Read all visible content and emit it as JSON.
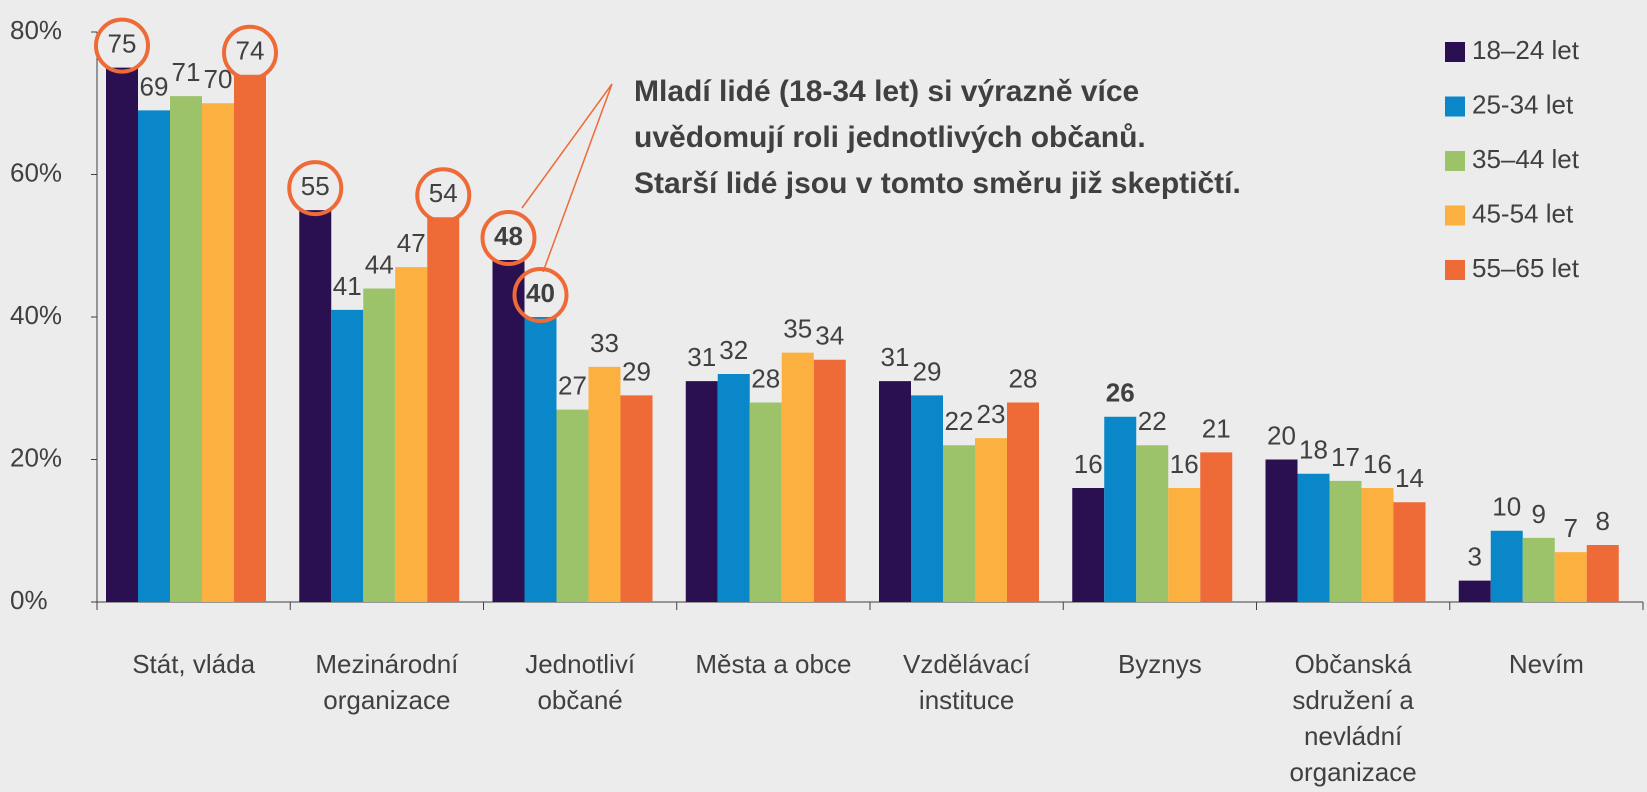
{
  "chart_data": {
    "type": "bar",
    "annotation": [
      "Mladí lidé (18-34 let) si výrazně více",
      "uvědomují roli jednotlivých občanů.",
      "Starší lidé jsou v tomto směru již skeptičtí."
    ],
    "categories": [
      "Stát, vláda",
      "Mezinárodní organizace",
      "Jednotliví občané",
      "Města a obce",
      "Vzdělávací instituce",
      "Byznys",
      "Občanská sdružení a nevládní organizace",
      "Nevím"
    ],
    "series": [
      {
        "name": "18–24 let",
        "color": "#2a1050",
        "values": [
          75,
          55,
          48,
          31,
          31,
          16,
          20,
          3
        ]
      },
      {
        "name": "25-34 let",
        "color": "#0a87c8",
        "values": [
          69,
          41,
          40,
          32,
          29,
          26,
          18,
          10
        ]
      },
      {
        "name": "35–44 let",
        "color": "#9dc36a",
        "values": [
          71,
          44,
          27,
          28,
          22,
          22,
          17,
          9
        ]
      },
      {
        "name": "45-54 let",
        "color": "#fbb040",
        "values": [
          70,
          47,
          33,
          35,
          23,
          16,
          16,
          7
        ]
      },
      {
        "name": "55–65 let",
        "color": "#ee6a36",
        "values": [
          74,
          54,
          29,
          34,
          28,
          21,
          14,
          8
        ]
      }
    ],
    "ylim": [
      0,
      80
    ],
    "yticks": [
      {
        "value": 0,
        "label": "0%"
      },
      {
        "value": 20,
        "label": "20%"
      },
      {
        "value": 40,
        "label": "40%"
      },
      {
        "value": 60,
        "label": "60%"
      },
      {
        "value": 80,
        "label": "80%"
      }
    ],
    "legend": "top-right"
  }
}
